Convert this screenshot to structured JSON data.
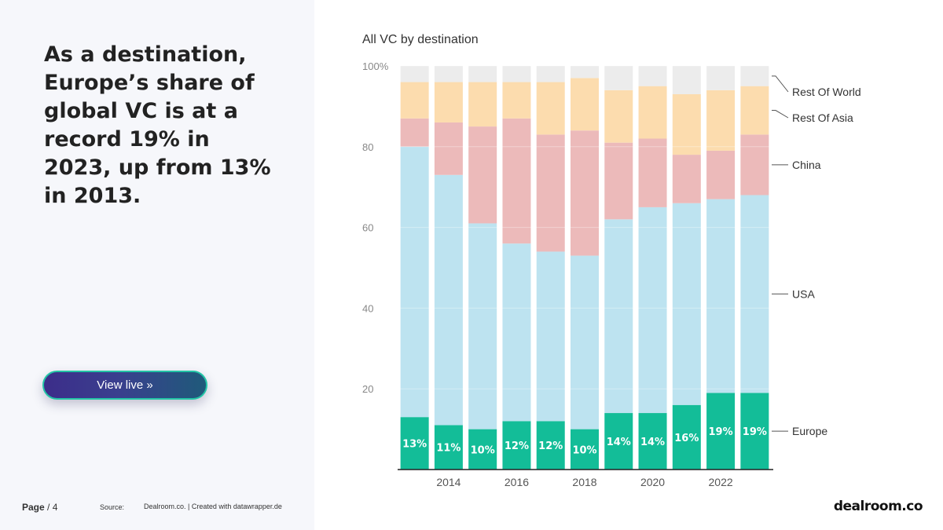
{
  "headline": "As a destination, Europe’s share of global VC is at a record 19% in 2023, up from 13% in 2013.",
  "view_live_button": "View live »",
  "footer": {
    "page_label": "Page",
    "page_number": "/ 4",
    "source_label": "Source:",
    "source_text": "Dealroom.co. | Created with datawrapper.de"
  },
  "logo_text": "dealroom.co",
  "colors": {
    "europe": "#13bd98",
    "usa": "#bde3f0",
    "china": "#ecbaba",
    "rest_of_asia": "#fcdcae",
    "rest_of_world": "#ececec"
  },
  "chart_data": {
    "type": "bar",
    "stacked": true,
    "title": "All VC by destination",
    "xlabel": "",
    "ylabel": "",
    "ylim": [
      0,
      100
    ],
    "y_ticks": [
      "20",
      "40",
      "60",
      "80",
      "100%"
    ],
    "x_tick_labels": [
      "2014",
      "2016",
      "2018",
      "2020",
      "2022"
    ],
    "categories": [
      "2013",
      "2014",
      "2015",
      "2016",
      "2017",
      "2018",
      "2019",
      "2020",
      "2021",
      "2022",
      "2023"
    ],
    "series": [
      {
        "name": "Europe",
        "values": [
          13,
          11,
          10,
          12,
          12,
          10,
          14,
          14,
          16,
          19,
          19
        ],
        "labels": [
          "13%",
          "11%",
          "10%",
          "12%",
          "12%",
          "10%",
          "14%",
          "14%",
          "16%",
          "19%",
          "19%"
        ]
      },
      {
        "name": "USA",
        "values": [
          67,
          62,
          51,
          44,
          42,
          43,
          48,
          51,
          50,
          48,
          49
        ]
      },
      {
        "name": "China",
        "values": [
          7,
          13,
          24,
          31,
          29,
          31,
          19,
          17,
          12,
          12,
          15
        ]
      },
      {
        "name": "Rest Of Asia",
        "values": [
          9,
          10,
          11,
          9,
          13,
          13,
          13,
          13,
          15,
          15,
          12
        ]
      },
      {
        "name": "Rest Of World",
        "values": [
          4,
          4,
          4,
          4,
          4,
          3,
          6,
          5,
          7,
          6,
          5
        ]
      }
    ],
    "legend_placement": "right, inline labels",
    "grid": true
  }
}
